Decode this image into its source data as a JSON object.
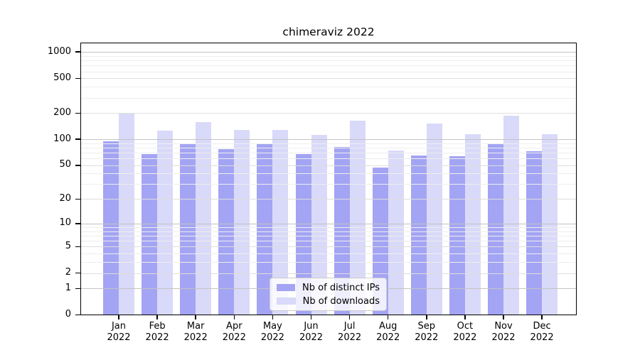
{
  "title": "chimeraviz 2022",
  "chart_data": {
    "type": "bar",
    "title": "chimeraviz 2022",
    "categories": [
      "Jan 2022",
      "Feb 2022",
      "Mar 2022",
      "Apr 2022",
      "May 2022",
      "Jun 2022",
      "Jul 2022",
      "Aug 2022",
      "Sep 2022",
      "Oct 2022",
      "Nov 2022",
      "Dec 2022"
    ],
    "series": [
      {
        "name": "Nb of distinct IPs",
        "color": "#a4a4f4",
        "values": [
          94,
          67,
          90,
          77,
          90,
          68,
          82,
          47,
          65,
          64,
          89,
          73
        ]
      },
      {
        "name": "Nb of downloads",
        "color": "#d9d9f9",
        "values": [
          199,
          125,
          158,
          128,
          129,
          112,
          165,
          74,
          152,
          114,
          185,
          115
        ]
      }
    ],
    "xlabel": "",
    "ylabel": "",
    "yscale": "log1p",
    "ylim": [
      0,
      1280
    ],
    "yticks": [
      0,
      1,
      2,
      5,
      10,
      20,
      50,
      100,
      200,
      500,
      1000
    ],
    "grid": true,
    "legend_position": "lower center"
  },
  "colors": {
    "background": "#ffffff",
    "bar_distinct_ips": "#a4a4f4",
    "bar_downloads": "#d9d9f9",
    "grid_major": "#c3c3c3",
    "grid_mid": "#dedede",
    "grid_minor": "#eeeeee",
    "spine": "#000000",
    "text": "#000000"
  }
}
